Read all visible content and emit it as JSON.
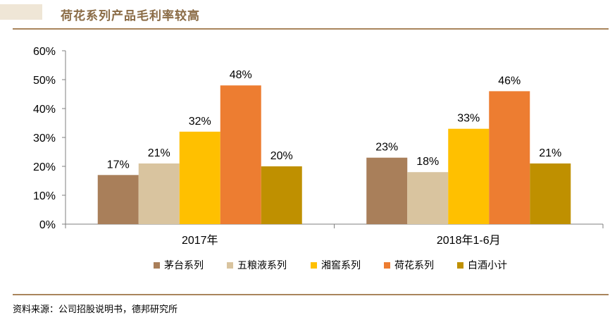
{
  "header": {
    "title": "荷花系列产品毛利率较高"
  },
  "footer": {
    "source": "资料来源：公司招股说明书，德邦研究所"
  },
  "colors": {
    "accent": "#a9855c",
    "series": [
      "#a97f5a",
      "#d9c49f",
      "#ffc000",
      "#ed7d31",
      "#bf9000"
    ]
  },
  "chart_data": {
    "type": "bar",
    "title": "荷花系列产品毛利率较高",
    "categories": [
      "2017年",
      "2018年1-6月"
    ],
    "series": [
      {
        "name": "茅台系列",
        "values": [
          17,
          23
        ],
        "labels": [
          "17%",
          "23%"
        ]
      },
      {
        "name": "五粮液系列",
        "values": [
          21,
          18
        ],
        "labels": [
          "21%",
          "18%"
        ]
      },
      {
        "name": "湘窖系列",
        "values": [
          32,
          33
        ],
        "labels": [
          "32%",
          "33%"
        ]
      },
      {
        "name": "荷花系列",
        "values": [
          48,
          46
        ],
        "labels": [
          "48%",
          "46%"
        ]
      },
      {
        "name": "白酒小计",
        "values": [
          20,
          21
        ],
        "labels": [
          "20%",
          "21%"
        ]
      }
    ],
    "yticks": [
      "0%",
      "10%",
      "20%",
      "30%",
      "40%",
      "50%",
      "60%"
    ],
    "ylim": [
      0,
      60
    ],
    "xlabel": "",
    "ylabel": "",
    "legend_position": "bottom"
  }
}
